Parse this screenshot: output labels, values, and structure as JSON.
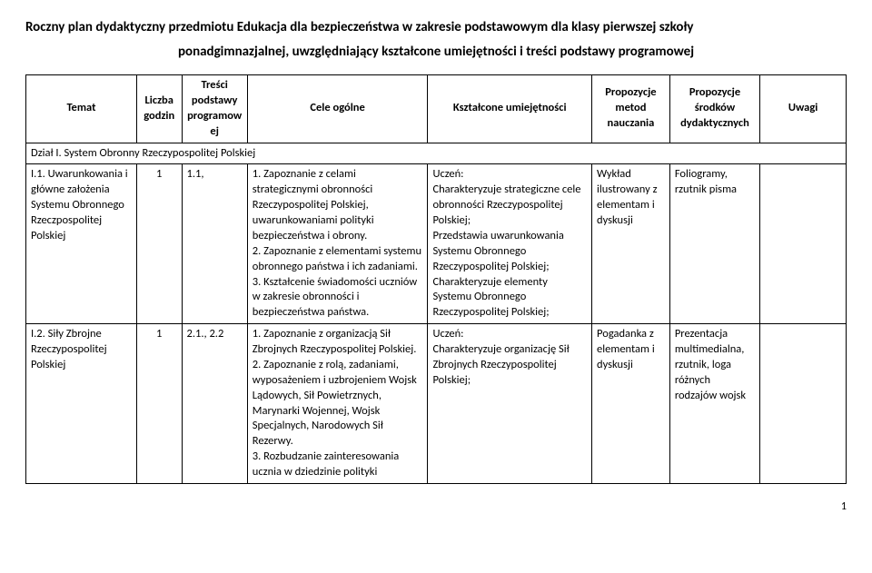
{
  "title": "Roczny plan dydaktyczny przedmiotu Edukacja dla bezpieczeństwa w zakresie podstawowym dla klasy pierwszej szkoły",
  "subtitle": "ponadgimnazjalnej, uwzględniający kształcone umiejętności i treści podstawy programowej",
  "headers": {
    "temat": "Temat",
    "godzin": "Liczba godzin",
    "tresci": "Treści podstawy programowej",
    "cele": "Cele ogólne",
    "umie": "Kształcone umiejętności",
    "metod": "Propozycje metod nauczania",
    "srodki": "Propozycje środków dydaktycznych",
    "uwagi": "Uwagi"
  },
  "section": "Dział I. System Obronny Rzeczypospolitej Polskiej",
  "rows": [
    {
      "temat": "I.1. Uwarunkowania i główne założenia Systemu Obronnego Rzeczpospolitej Polskiej",
      "godzin": "1",
      "tresci": "1.1,",
      "cele": "1. Zapoznanie z celami strategicznymi obronności Rzeczypospolitej Polskiej, uwarunkowaniami polityki bezpieczeństwa i obrony.\n2. Zapoznanie z elementami systemu obronnego państwa i ich zadaniami.\n3. Kształcenie świadomości uczniów w zakresie obronności i bezpieczeństwa państwa.",
      "umie": "Uczeń:\nCharakteryzuje strategiczne cele obronności Rzeczypospolitej Polskiej;\nPrzedstawia uwarunkowania Systemu Obronnego Rzeczypospolitej Polskiej;\nCharakteryzuje elementy Systemu Obronnego Rzeczypospolitej Polskiej;",
      "metod": "Wykład ilustrowany z elementam i dyskusji",
      "srodki": "Foliogramy, rzutnik pisma",
      "uwagi": ""
    },
    {
      "temat": "I.2. Siły Zbrojne Rzeczypospolitej Polskiej",
      "godzin": "1",
      "tresci": "2.1., 2.2",
      "cele": "1. Zapoznanie z organizacją Sił Zbrojnych Rzeczypospolitej Polskiej.\n2. Zapoznanie z rolą, zadaniami, wyposażeniem i uzbrojeniem Wojsk Lądowych, Sił Powietrznych, Marynarki Wojennej, Wojsk Specjalnych, Narodowych Sił Rezerwy.\n3. Rozbudzanie zainteresowania ucznia w dziedzinie polityki",
      "umie": "Uczeń:\nCharakteryzuje organizację Sił Zbrojnych Rzeczypospolitej Polskiej;",
      "metod": "Pogadanka z elementam i dyskusji",
      "srodki": "Prezentacja multimedialna, rzutnik, loga różnych rodzajów wojsk",
      "uwagi": ""
    }
  ],
  "pageNumber": "1"
}
